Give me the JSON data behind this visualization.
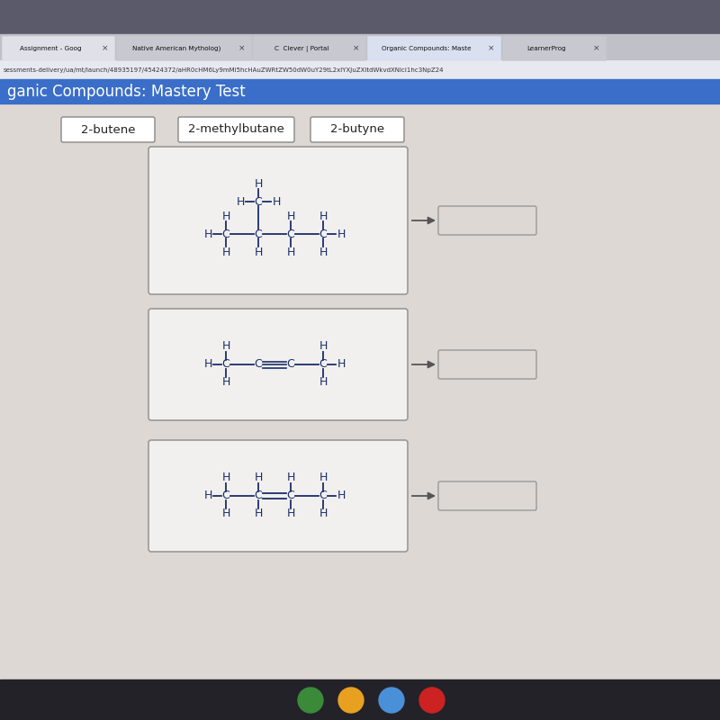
{
  "title": "ganic Compounds: Mastery Test",
  "addr_text": "sessments-delivery/ua/mt/launch/48935197/45424372/aHR0cHM6Ly9mMi5hcHAuZWRtZW50dW0uY29tL2xlYXJuZXItdWkvdXNlci1hc3NpZ24",
  "labels": [
    "2-butene",
    "2-methylbutane",
    "2-butyne"
  ],
  "bg_color": "#ddd8d4",
  "box_bg": "#f2f0ee",
  "box_border": "#999999",
  "answer_box_bg": "#ddd8d4",
  "arrow_color": "#555555",
  "text_color": "#222222",
  "formula_color": "#1a2e6b",
  "title_bar_bg": "#3a6ec8",
  "tab_bar_bg": "#c0c0c8",
  "browser_top_bg": "#5a5a6a",
  "addr_bar_bg": "#e8e8f0",
  "taskbar_bg": "#222228",
  "label_border": "#888888",
  "label_bg": "#ffffff"
}
